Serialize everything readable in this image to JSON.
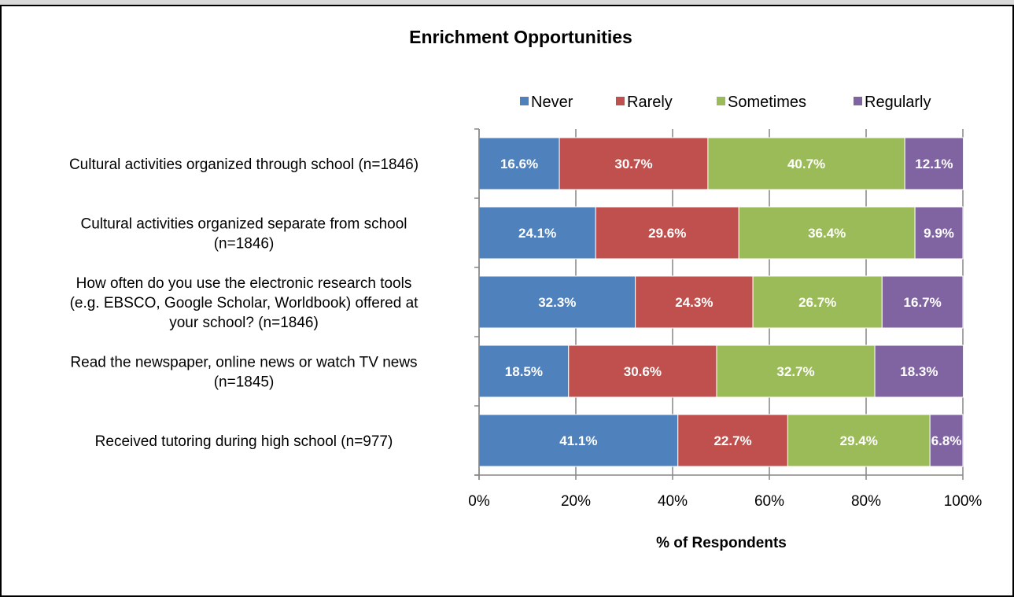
{
  "chart_data": {
    "type": "bar",
    "orientation": "horizontal",
    "stacked": true,
    "title": "Enrichment Opportunities",
    "xlabel": "% of Respondents",
    "ylabel": "",
    "xlim": [
      0,
      100
    ],
    "x_ticks": [
      "0%",
      "20%",
      "40%",
      "60%",
      "80%",
      "100%"
    ],
    "legend_position": "top-right",
    "categories": [
      [
        "Cultural activities organized through school (n=1846)"
      ],
      [
        "Cultural activities organized separate from school",
        "(n=1846)"
      ],
      [
        "How often do you use the electronic research tools",
        "(e.g. EBSCO, Google Scholar, Worldbook) offered at",
        "your school?  (n=1846)"
      ],
      [
        "Read the newspaper, online news or watch TV news",
        "(n=1845)"
      ],
      [
        "Received tutoring during high school (n=977)"
      ]
    ],
    "series": [
      {
        "name": "Never",
        "color": "#4f81bd",
        "values": [
          16.6,
          24.1,
          32.3,
          18.5,
          41.1
        ],
        "labels": [
          "16.6%",
          "24.1%",
          "32.3%",
          "18.5%",
          "41.1%"
        ]
      },
      {
        "name": "Rarely",
        "color": "#c0504d",
        "values": [
          30.7,
          29.6,
          24.3,
          30.6,
          22.7
        ],
        "labels": [
          "30.7%",
          "29.6%",
          "24.3%",
          "30.6%",
          "22.7%"
        ]
      },
      {
        "name": "Sometimes",
        "color": "#9bbb59",
        "values": [
          40.7,
          36.4,
          26.7,
          32.7,
          29.4
        ],
        "labels": [
          "40.7%",
          "36.4%",
          "26.7%",
          "32.7%",
          "29.4%"
        ]
      },
      {
        "name": "Regularly",
        "color": "#8064a2",
        "values": [
          12.1,
          9.9,
          16.7,
          18.3,
          6.8
        ],
        "labels": [
          "12.1%",
          "9.9%",
          "16.7%",
          "18.3%",
          "6.8%"
        ]
      }
    ]
  }
}
